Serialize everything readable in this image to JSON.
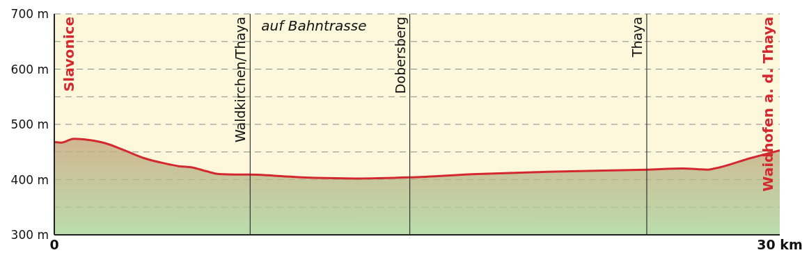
{
  "chart_data": {
    "type": "area",
    "x": [
      0,
      0.3,
      0.8,
      1.2,
      2.1,
      2.9,
      3.7,
      4.6,
      5.2,
      5.7,
      6.3,
      6.8,
      7.5,
      8.1,
      9.1,
      10.8,
      12.5,
      14.7,
      17.5,
      20.4,
      24.5,
      26,
      26.6,
      27,
      27.3,
      28.8,
      30
    ],
    "series": [
      {
        "color": "#d4282f",
        "values": [
          468,
          467,
          474,
          473,
          466,
          453,
          439,
          429,
          424,
          422,
          415,
          410,
          409,
          409,
          407,
          403,
          402,
          404,
          410,
          414,
          418,
          420,
          419,
          418,
          420,
          439,
          453
        ]
      }
    ],
    "xlim": [
      0,
      30
    ],
    "xticks": [
      {
        "value": 0,
        "label": "0"
      },
      {
        "value": 30,
        "label": "30 km"
      }
    ],
    "ylim": [
      300,
      700
    ],
    "yticks": [
      {
        "value": 300,
        "label": "300 m"
      },
      {
        "value": 350,
        "label": null
      },
      {
        "value": 400,
        "label": "400 m"
      },
      {
        "value": 450,
        "label": null
      },
      {
        "value": 500,
        "label": "500 m"
      },
      {
        "value": 550,
        "label": null
      },
      {
        "value": 600,
        "label": "600 m"
      },
      {
        "value": 650,
        "label": null
      },
      {
        "value": 700,
        "label": "700 m"
      }
    ],
    "grid": "y",
    "line_style": "solid",
    "marker": "none",
    "ref_lines": [
      {
        "axis": "x",
        "value": 8.1,
        "label": "Waldkirchen/Thaya"
      },
      {
        "axis": "x",
        "value": 14.7,
        "label": "Dobersberg"
      },
      {
        "axis": "x",
        "value": 24.5,
        "label": "Thaya"
      }
    ],
    "annotations": [
      "Slavonice",
      "auf Bahntrasse",
      "Waidhofen a. d. Thaya"
    ]
  }
}
